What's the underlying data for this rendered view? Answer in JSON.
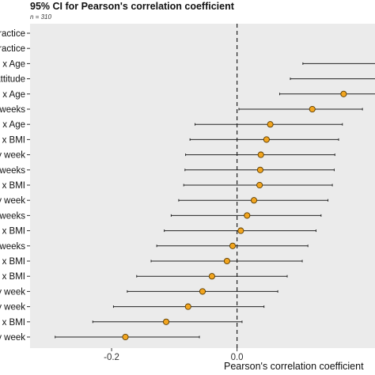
{
  "chart_data": {
    "type": "scatter",
    "title": "95% CI for Pearson's correlation coefficient",
    "subtitle": "n = 310",
    "xlabel": "Pearson's correlation coefficient",
    "ylabel": "",
    "xlim": [
      -0.33,
      0.22
    ],
    "xticks": [
      -0.2,
      0.0
    ],
    "xtick_labels": [
      "-0.2",
      "0.0"
    ],
    "reference_line": 0.0,
    "grid": false,
    "colors": {
      "point": "#f2a51f",
      "point_edge": "#5a3b00",
      "panel": "#ebebeb",
      "line": "#222222"
    },
    "rows": [
      {
        "label": "ractice",
        "estimate": null,
        "low": null,
        "high": null
      },
      {
        "label": "ractice",
        "estimate": null,
        "low": null,
        "high": null
      },
      {
        "label": "e x Age",
        "estimate": null,
        "low": 0.105,
        "high": null
      },
      {
        "label": "attitude",
        "estimate": null,
        "low": 0.085,
        "high": null
      },
      {
        "label": "e x Age",
        "estimate": 0.17,
        "low": 0.068,
        "high": null
      },
      {
        "label": "weeks",
        "estimate": 0.12,
        "low": 0.003,
        "high": 0.2
      },
      {
        "label": "e x Age",
        "estimate": 0.053,
        "low": -0.067,
        "high": 0.168
      },
      {
        "label": "x BMI",
        "estimate": 0.047,
        "low": -0.075,
        "high": 0.162
      },
      {
        "label": "y week",
        "estimate": 0.038,
        "low": -0.082,
        "high": 0.156
      },
      {
        "label": "weeks",
        "estimate": 0.037,
        "low": -0.083,
        "high": 0.155
      },
      {
        "label": "x BMI",
        "estimate": 0.036,
        "low": -0.085,
        "high": 0.152
      },
      {
        "label": "y week",
        "estimate": 0.027,
        "low": -0.093,
        "high": 0.145
      },
      {
        "label": "weeks",
        "estimate": 0.016,
        "low": -0.105,
        "high": 0.134
      },
      {
        "label": "x BMI",
        "estimate": 0.006,
        "low": -0.116,
        "high": 0.126
      },
      {
        "label": "weeks",
        "estimate": -0.007,
        "low": -0.128,
        "high": 0.113
      },
      {
        "label": "x BMI",
        "estimate": -0.016,
        "low": -0.137,
        "high": 0.104
      },
      {
        "label": "x BMI",
        "estimate": -0.04,
        "low": -0.16,
        "high": 0.08
      },
      {
        "label": "y week",
        "estimate": -0.055,
        "low": -0.175,
        "high": 0.065
      },
      {
        "label": "y week",
        "estimate": -0.078,
        "low": -0.197,
        "high": 0.043
      },
      {
        "label": "e x BMI",
        "estimate": -0.113,
        "low": -0.23,
        "high": 0.008
      },
      {
        "label": "y week",
        "estimate": -0.178,
        "low": -0.29,
        "high": -0.06
      }
    ]
  }
}
